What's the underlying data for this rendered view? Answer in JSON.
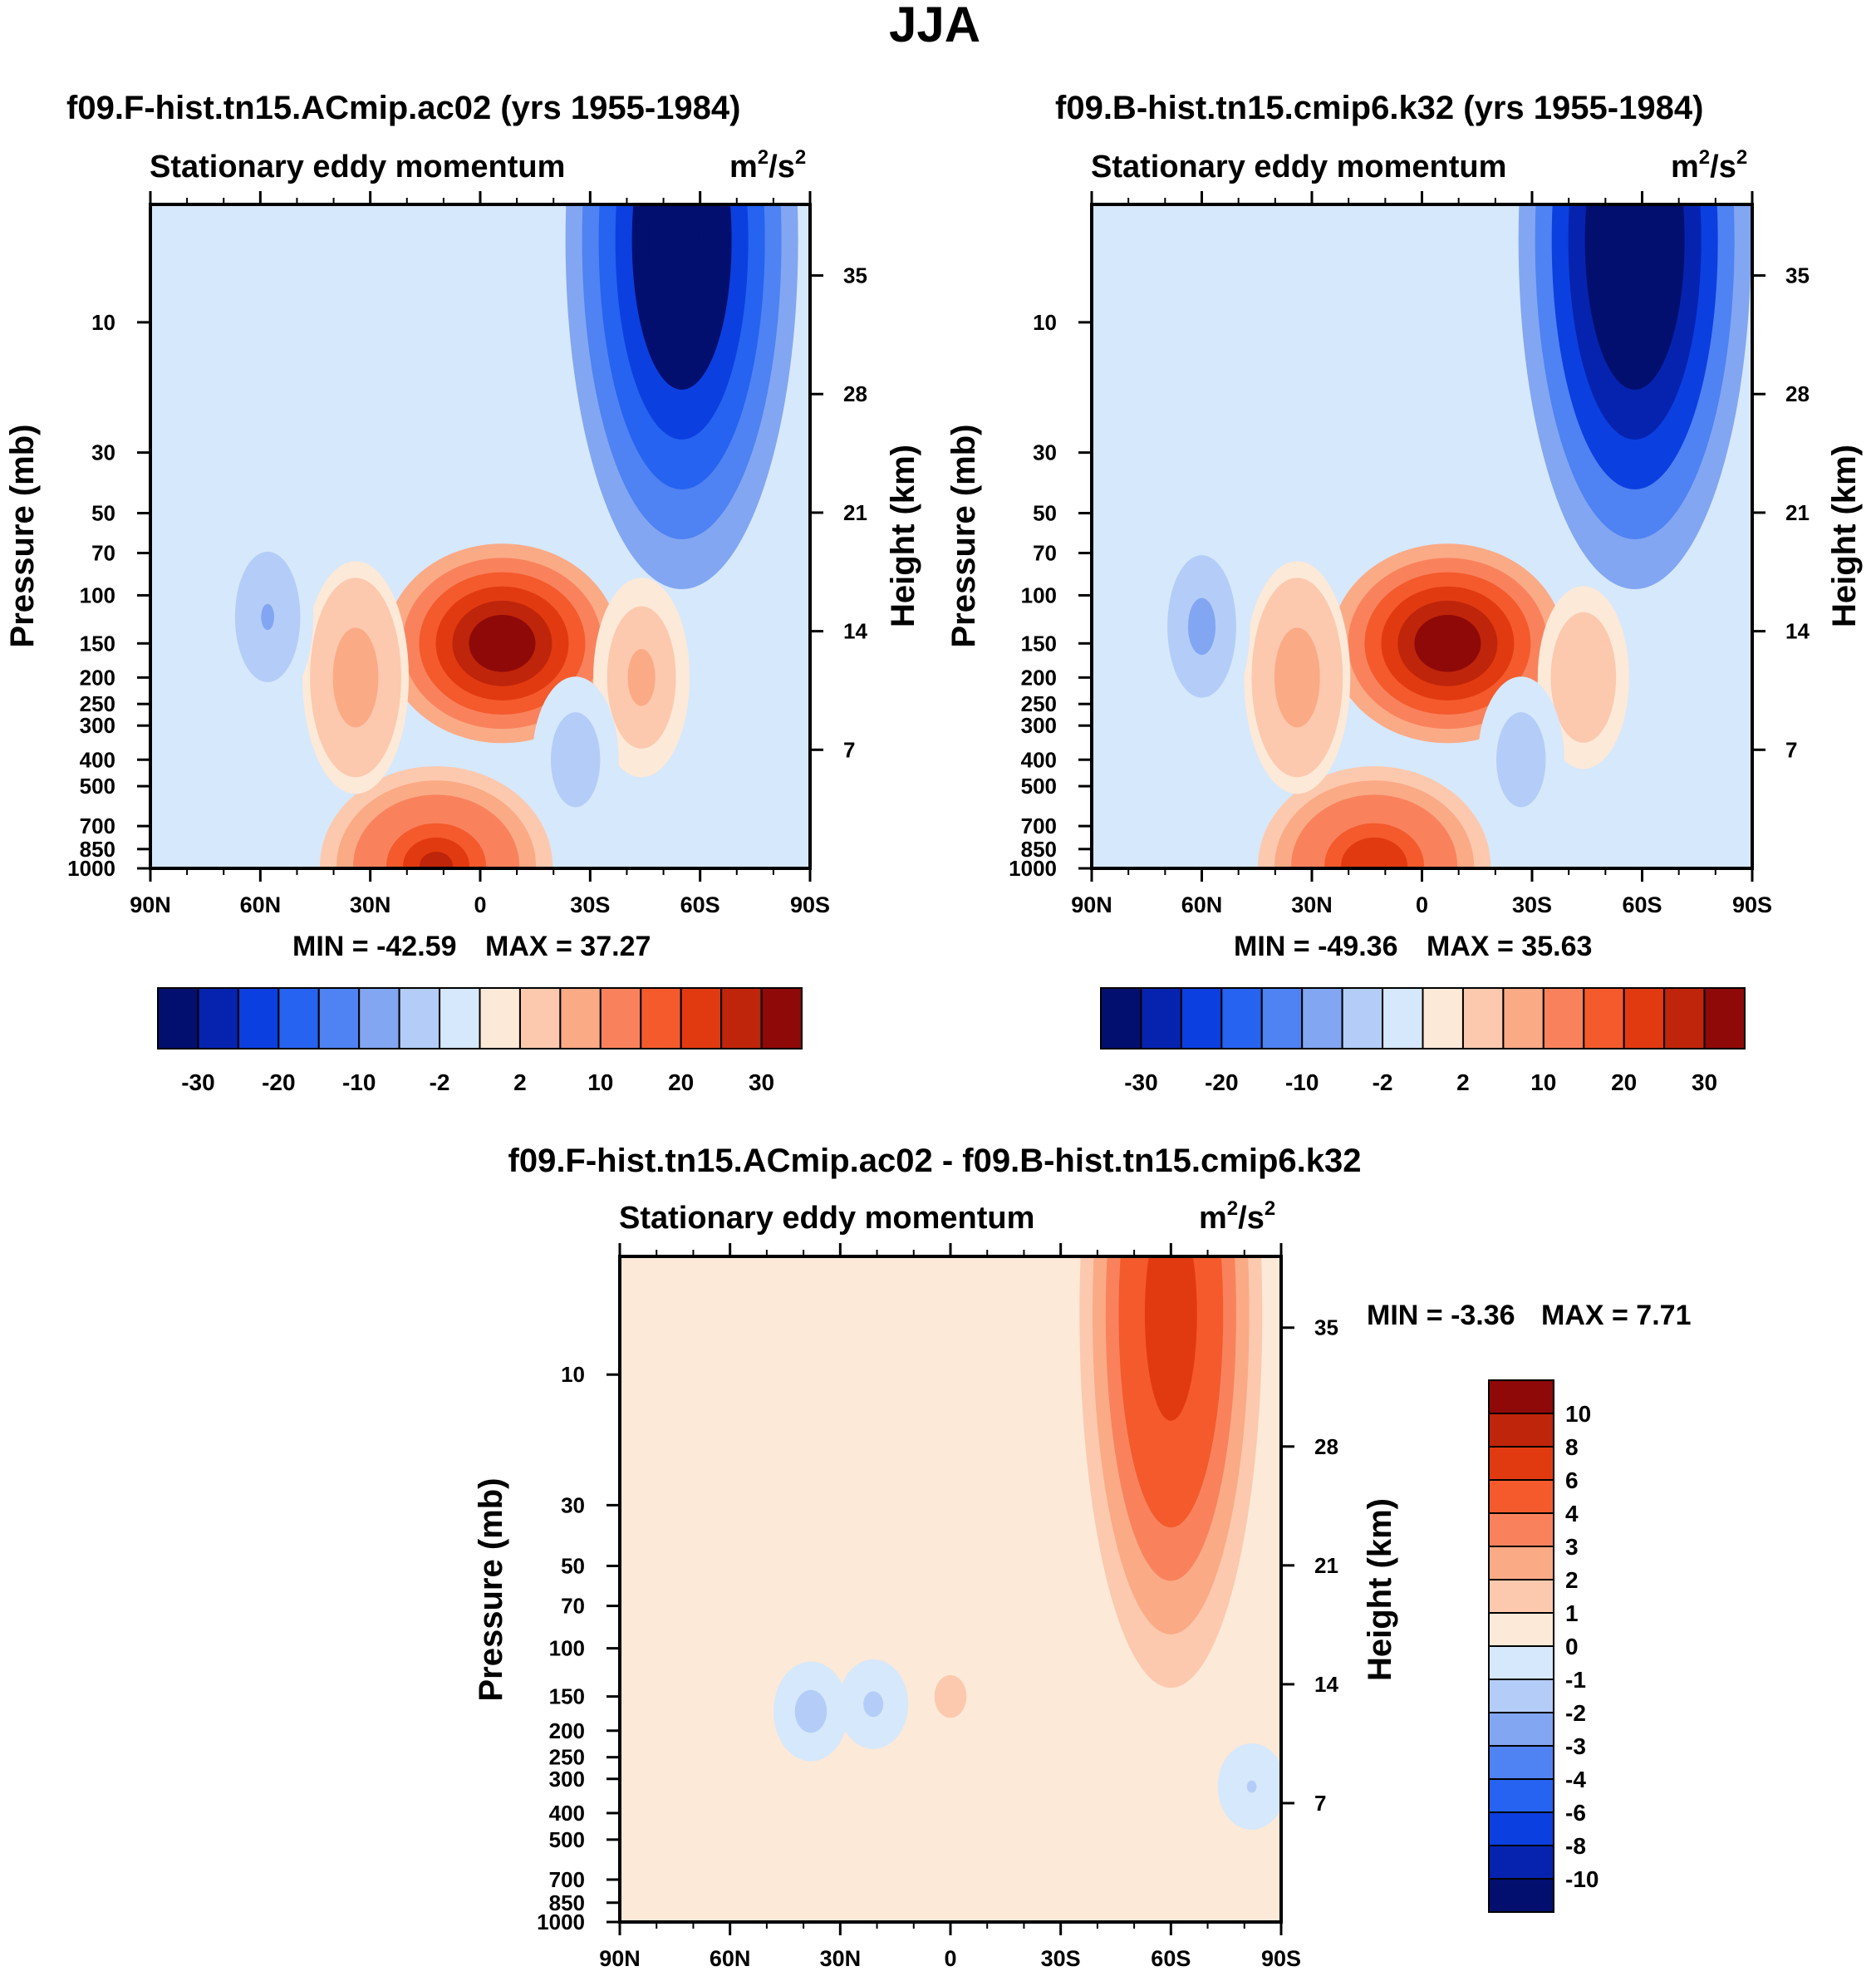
{
  "figure_title": "JJA",
  "chart_data": [
    {
      "type": "heatmap",
      "title": "f09.F-hist.tn15.ACmip.ac02 (yrs 1955-1984)",
      "subtitle": "Stationary eddy momentum",
      "units_base": "m",
      "units_sup1": "2",
      "units_mid": "/s",
      "units_sup2": "2",
      "xlabel": "",
      "ylabel": "Pressure (mb)",
      "y2label": "Height (km)",
      "x_ticks": [
        "90N",
        "60N",
        "30N",
        "0",
        "30S",
        "60S",
        "90S"
      ],
      "x_range": [
        90,
        -90
      ],
      "y_ticks": [
        10,
        30,
        50,
        70,
        100,
        150,
        200,
        250,
        300,
        400,
        500,
        700,
        850,
        1000
      ],
      "y_range": [
        3.7,
        1000
      ],
      "y2_ticks": [
        35,
        28,
        21,
        14,
        7
      ],
      "min_label": "MIN = -42.59",
      "max_label": "MAX =  37.27",
      "colorbar_labels": [
        "-30",
        "-20",
        "-10",
        "-2",
        "2",
        "10",
        "20",
        "30"
      ],
      "features": [
        {
          "lat": -55,
          "p": 5,
          "value": -42.59
        },
        {
          "lat": -6,
          "p": 150,
          "value": 37.27
        },
        {
          "lat": 12,
          "p": 980,
          "value": 26
        },
        {
          "lat": 34,
          "p": 200,
          "value": 8
        },
        {
          "lat": -44,
          "p": 200,
          "value": 6
        },
        {
          "lat": 58,
          "p": 120,
          "value": -5
        },
        {
          "lat": -26,
          "p": 400,
          "value": -4
        }
      ]
    },
    {
      "type": "heatmap",
      "title": "f09.B-hist.tn15.cmip6.k32 (yrs 1955-1984)",
      "subtitle": "Stationary eddy momentum",
      "units_base": "m",
      "units_sup1": "2",
      "units_mid": "/s",
      "units_sup2": "2",
      "xlabel": "",
      "ylabel": "Pressure (mb)",
      "y2label": "Height (km)",
      "x_ticks": [
        "90N",
        "60N",
        "30N",
        "0",
        "30S",
        "60S",
        "90S"
      ],
      "x_range": [
        90,
        -90
      ],
      "y_ticks": [
        10,
        30,
        50,
        70,
        100,
        150,
        200,
        250,
        300,
        400,
        500,
        700,
        850,
        1000
      ],
      "y_range": [
        3.7,
        1000
      ],
      "y2_ticks": [
        35,
        28,
        21,
        14,
        7
      ],
      "min_label": "MIN = -49.36",
      "max_label": "MAX =  35.63",
      "colorbar_labels": [
        "-30",
        "-20",
        "-10",
        "-2",
        "2",
        "10",
        "20",
        "30"
      ],
      "features": [
        {
          "lat": -58,
          "p": 5,
          "value": -49.36
        },
        {
          "lat": -7,
          "p": 150,
          "value": 35.63
        },
        {
          "lat": 13,
          "p": 980,
          "value": 24
        },
        {
          "lat": 34,
          "p": 200,
          "value": 8
        },
        {
          "lat": -44,
          "p": 200,
          "value": 5
        },
        {
          "lat": 60,
          "p": 130,
          "value": -6
        },
        {
          "lat": -27,
          "p": 400,
          "value": -4
        }
      ]
    },
    {
      "type": "heatmap",
      "title": "f09.F-hist.tn15.ACmip.ac02 - f09.B-hist.tn15.cmip6.k32",
      "subtitle": "Stationary eddy momentum",
      "units_base": "m",
      "units_sup1": "2",
      "units_mid": "/s",
      "units_sup2": "2",
      "xlabel": "",
      "ylabel": "Pressure (mb)",
      "y2label": "Height (km)",
      "x_ticks": [
        "90N",
        "60N",
        "30N",
        "0",
        "30S",
        "60S",
        "90S"
      ],
      "x_range": [
        90,
        -90
      ],
      "y_ticks": [
        10,
        30,
        50,
        70,
        100,
        150,
        200,
        250,
        300,
        400,
        500,
        700,
        850,
        1000
      ],
      "y_range": [
        3.7,
        1000
      ],
      "y2_ticks": [
        35,
        28,
        21,
        14,
        7
      ],
      "min_label": "MIN =  -3.36",
      "max_label": "MAX =   7.71",
      "colorbar_labels": [
        "10",
        "8",
        "6",
        "4",
        "3",
        "2",
        "1",
        "0",
        "-1",
        "-2",
        "-3",
        "-4",
        "-6",
        "-8",
        "-10"
      ],
      "features": [
        {
          "lat": -60,
          "p": 6,
          "value": 7.71
        },
        {
          "lat": 0,
          "p": 150,
          "value": 1.5
        },
        {
          "lat": 38,
          "p": 170,
          "value": -1.5
        },
        {
          "lat": 21,
          "p": 160,
          "value": -1.2
        },
        {
          "lat": -82,
          "p": 320,
          "value": -1.1
        }
      ]
    }
  ],
  "colors": {
    "cmap_top": [
      "#020f6e",
      "#0623b0",
      "#0c3fe0",
      "#2563f0",
      "#4f82f2",
      "#82a6f2",
      "#b4cdf8",
      "#d6e8fb",
      "#fde9d8",
      "#fcc9ae",
      "#fbaa86",
      "#f9825d",
      "#f45a2c",
      "#e23a10",
      "#bf250a",
      "#8f0909"
    ],
    "cmap_diff": [
      "#8f0909",
      "#bf250a",
      "#e23a10",
      "#f45a2c",
      "#f9825d",
      "#fbaa86",
      "#fcc9ae",
      "#fde9d8",
      "#d6e8fb",
      "#b4cdf8",
      "#82a6f2",
      "#4f82f2",
      "#2563f0",
      "#0c3fe0",
      "#0623b0",
      "#020f6e"
    ]
  }
}
